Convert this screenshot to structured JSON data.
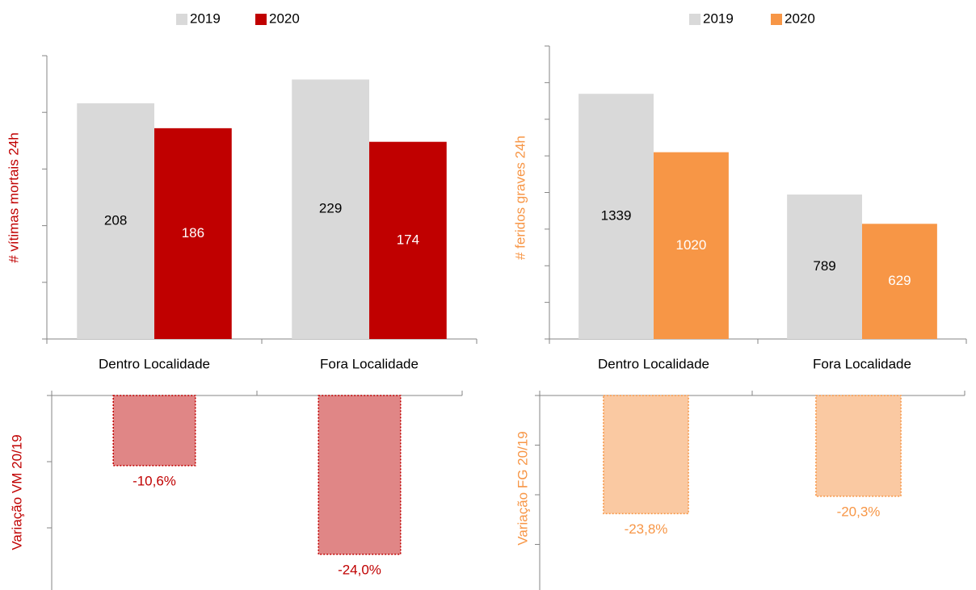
{
  "chart_data": [
    {
      "type": "bar",
      "y_label": "# vítimas mortais 24h",
      "y_label_color": "#c00000",
      "categories": [
        "Dentro Localidade",
        "Fora Localidade"
      ],
      "series": [
        {
          "name": "2019",
          "color": "#d9d9d9",
          "label_color": "#000000",
          "values": [
            208,
            229
          ]
        },
        {
          "name": "2020",
          "color": "#c00000",
          "label_color": "#ffffff",
          "values": [
            186,
            174
          ]
        }
      ],
      "ylim": [
        0,
        250
      ],
      "yticks": [
        0,
        50,
        100,
        150,
        200,
        250
      ],
      "legend": "top"
    },
    {
      "type": "bar",
      "y_label": "# feridos graves 24h",
      "y_label_color": "#f79646",
      "categories": [
        "Dentro Localidade",
        "Fora Localidade"
      ],
      "series": [
        {
          "name": "2019",
          "color": "#d9d9d9",
          "label_color": "#000000",
          "values": [
            1339,
            789
          ]
        },
        {
          "name": "2020",
          "color": "#f79646",
          "label_color": "#ffffff",
          "values": [
            1020,
            629
          ]
        }
      ],
      "ylim": [
        0,
        1600
      ],
      "yticks": [
        0,
        200,
        400,
        600,
        800,
        1000,
        1200,
        1400,
        1600
      ],
      "legend": "top"
    },
    {
      "type": "bar",
      "y_label": "Variação VM 20/19",
      "y_label_color": "#c00000",
      "values": [
        -10.6,
        -24.0
      ],
      "value_labels": [
        "-10,6%",
        "-24,0%"
      ],
      "color": "#e08686",
      "border_color": "#c00000",
      "label_color": "#c00000",
      "ylim": [
        -30,
        0
      ],
      "yticks": [
        0,
        -10,
        -20,
        -30
      ]
    },
    {
      "type": "bar",
      "y_label": "Variação FG 20/19",
      "y_label_color": "#f79646",
      "values": [
        -23.8,
        -20.3
      ],
      "value_labels": [
        "-23,8%",
        "-20,3%"
      ],
      "color": "#fac9a2",
      "border_color": "#f79646",
      "label_color": "#f79646",
      "ylim": [
        -40,
        0
      ],
      "yticks": [
        0,
        -10,
        -20,
        -30,
        -40
      ]
    }
  ]
}
